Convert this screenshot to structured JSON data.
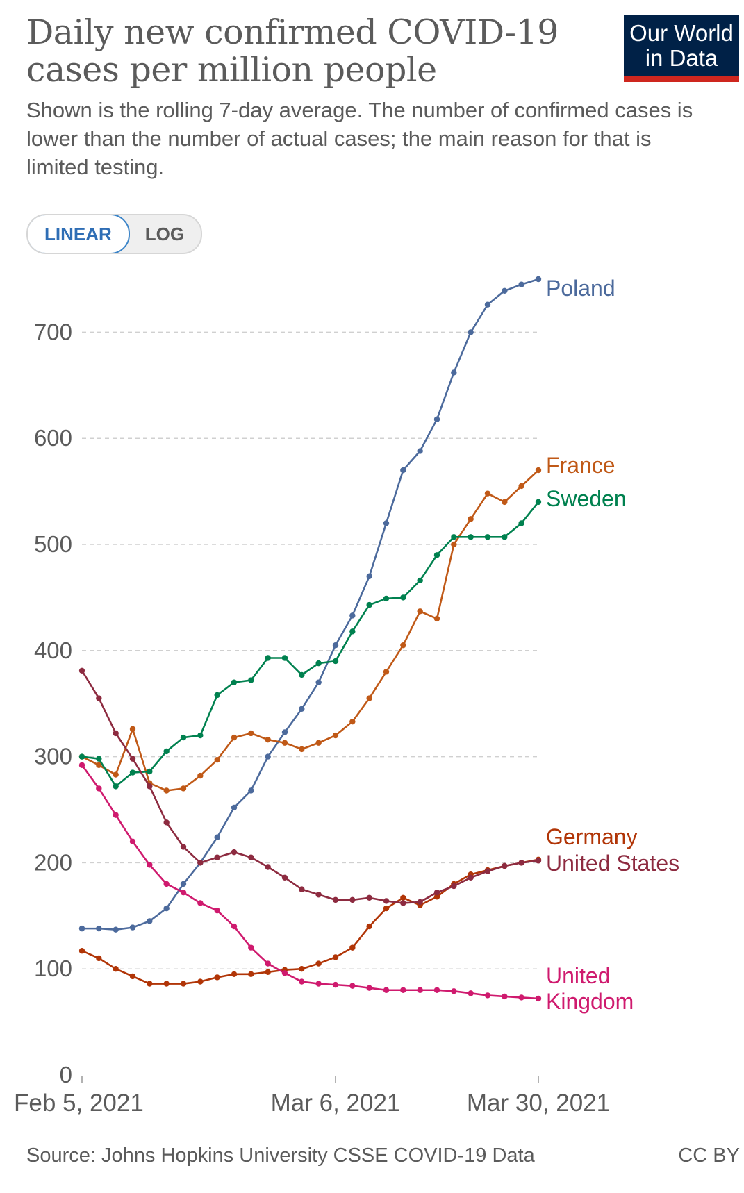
{
  "header": {
    "title": "Daily new confirmed COVID-19 cases per million people",
    "subtitle": "Shown is the rolling 7-day average. The number of confirmed cases is lower than the number of actual cases; the main reason for that is limited testing.",
    "logo_line1": "Our World",
    "logo_line2": "in Data"
  },
  "controls": {
    "linear_label": "LINEAR",
    "log_label": "LOG",
    "active": "LINEAR"
  },
  "footer": {
    "source": "Source: Johns Hopkins University CSSE COVID-19 Data",
    "license": "CC BY"
  },
  "colors": {
    "Poland": "#4c6a9c",
    "France": "#c05917",
    "Sweden": "#00814f",
    "Germany": "#b13507",
    "United States": "#8d2b40",
    "United Kingdom": "#cf1a6e",
    "gridline": "#d0d0d0",
    "tick_text": "#5b5b5b"
  },
  "chart_data": {
    "type": "line",
    "ylim": [
      0,
      750
    ],
    "yticks": [
      0,
      100,
      200,
      300,
      400,
      500,
      600,
      700
    ],
    "xticks": [
      "Feb 5, 2021",
      "Mar 6, 2021",
      "Mar 30, 2021"
    ],
    "x": [
      "Feb 5",
      "Feb 7",
      "Feb 9",
      "Feb 11",
      "Feb 13",
      "Feb 15",
      "Feb 17",
      "Feb 19",
      "Feb 21",
      "Feb 23",
      "Feb 25",
      "Feb 27",
      "Mar 1",
      "Mar 3",
      "Mar 5",
      "Mar 7",
      "Mar 9",
      "Mar 11",
      "Mar 13",
      "Mar 15",
      "Mar 17",
      "Mar 19",
      "Mar 21",
      "Mar 23",
      "Mar 25",
      "Mar 27",
      "Mar 29",
      "Mar 30"
    ],
    "grid": true,
    "legend": "end-of-line labels",
    "series": [
      {
        "name": "Poland",
        "values": [
          138,
          138,
          137,
          139,
          145,
          157,
          180,
          200,
          224,
          252,
          268,
          300,
          323,
          345,
          370,
          405,
          433,
          470,
          520,
          570,
          588,
          618,
          662,
          700,
          726,
          739,
          745,
          750
        ]
      },
      {
        "name": "France",
        "values": [
          300,
          292,
          283,
          326,
          275,
          268,
          270,
          282,
          297,
          318,
          322,
          316,
          313,
          307,
          313,
          320,
          333,
          355,
          380,
          405,
          437,
          430,
          500,
          524,
          548,
          540,
          555,
          570
        ]
      },
      {
        "name": "Sweden",
        "values": [
          300,
          298,
          272,
          285,
          286,
          305,
          318,
          320,
          358,
          370,
          372,
          393,
          393,
          377,
          388,
          390,
          418,
          443,
          449,
          450,
          466,
          490,
          507,
          507,
          507,
          507,
          520,
          540
        ]
      },
      {
        "name": "Germany",
        "values": [
          117,
          110,
          100,
          93,
          86,
          86,
          86,
          88,
          92,
          95,
          95,
          97,
          99,
          100,
          105,
          111,
          120,
          140,
          157,
          167,
          160,
          168,
          180,
          189,
          193,
          197,
          200,
          203
        ]
      },
      {
        "name": "United States",
        "values": [
          381,
          355,
          322,
          298,
          272,
          238,
          215,
          200,
          205,
          210,
          205,
          196,
          186,
          175,
          170,
          165,
          165,
          167,
          164,
          162,
          163,
          172,
          178,
          186,
          192,
          197,
          200,
          202
        ]
      },
      {
        "name": "United Kingdom",
        "values": [
          292,
          270,
          245,
          220,
          198,
          180,
          172,
          162,
          155,
          140,
          120,
          105,
          96,
          88,
          86,
          85,
          84,
          82,
          80,
          80,
          80,
          80,
          79,
          77,
          75,
          74,
          73,
          72
        ]
      }
    ],
    "labels": [
      {
        "lines": [
          "Poland"
        ],
        "color_key": "Poland"
      },
      {
        "lines": [
          "France"
        ],
        "color_key": "France"
      },
      {
        "lines": [
          "Sweden"
        ],
        "color_key": "Sweden"
      },
      {
        "lines": [
          "Germany"
        ],
        "color_key": "Germany"
      },
      {
        "lines": [
          "United States"
        ],
        "color_key": "United States"
      },
      {
        "lines": [
          "United",
          "Kingdom"
        ],
        "color_key": "United Kingdom"
      }
    ]
  }
}
